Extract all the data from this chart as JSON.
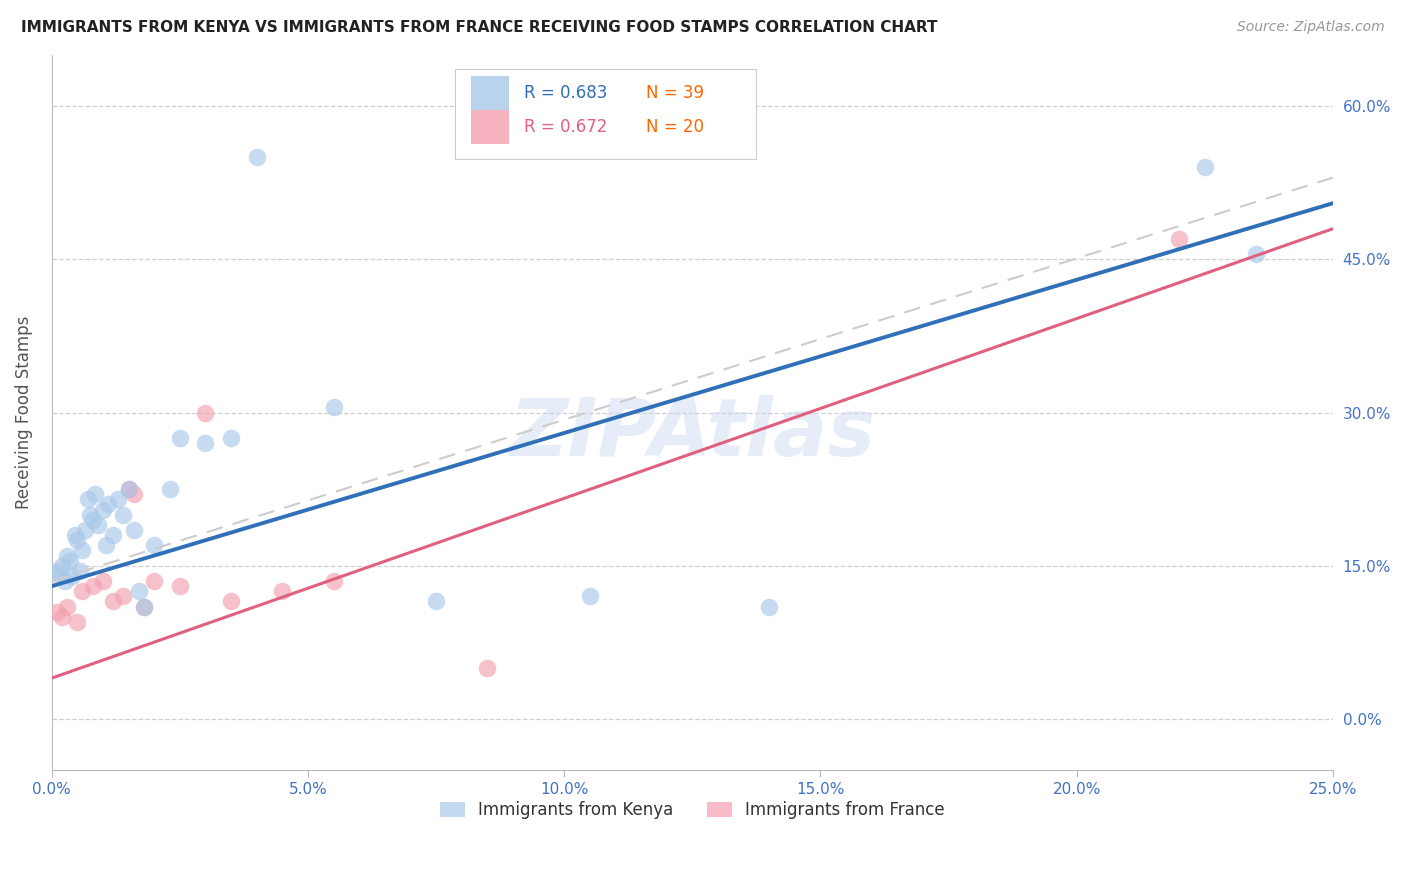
{
  "title": "IMMIGRANTS FROM KENYA VS IMMIGRANTS FROM FRANCE RECEIVING FOOD STAMPS CORRELATION CHART",
  "source": "Source: ZipAtlas.com",
  "ylabel": "Receiving Food Stamps",
  "xlim": [
    0.0,
    25.0
  ],
  "ylim": [
    -5.0,
    65.0
  ],
  "yticks": [
    0.0,
    15.0,
    30.0,
    45.0,
    60.0
  ],
  "xticks": [
    0.0,
    5.0,
    10.0,
    15.0,
    20.0,
    25.0
  ],
  "kenya_R": 0.683,
  "kenya_N": 39,
  "france_R": 0.672,
  "france_N": 20,
  "kenya_color": "#a8c8e8",
  "france_color": "#f4a0b0",
  "kenya_line_color": "#3070b8",
  "france_line_color": "#e06080",
  "dashed_line_color": "#cccccc",
  "kenya_scatter_x": [
    0.1,
    0.2,
    0.25,
    0.3,
    0.35,
    0.4,
    0.45,
    0.5,
    0.55,
    0.6,
    0.65,
    0.7,
    0.75,
    0.8,
    0.85,
    0.9,
    1.0,
    1.05,
    1.1,
    1.2,
    1.3,
    1.4,
    1.5,
    1.6,
    1.7,
    1.8,
    2.0,
    2.3,
    2.5,
    3.0,
    3.5,
    4.0,
    5.5,
    7.5,
    22.5,
    23.5,
    10.5,
    14.0,
    0.15
  ],
  "kenya_scatter_y": [
    14.5,
    15.0,
    13.5,
    16.0,
    15.5,
    14.0,
    18.0,
    17.5,
    14.5,
    16.5,
    18.5,
    21.5,
    20.0,
    19.5,
    22.0,
    19.0,
    20.5,
    17.0,
    21.0,
    18.0,
    21.5,
    20.0,
    22.5,
    18.5,
    12.5,
    11.0,
    17.0,
    22.5,
    27.5,
    27.0,
    27.5,
    55.0,
    30.5,
    11.5,
    54.0,
    45.5,
    12.0,
    11.0,
    14.0
  ],
  "france_scatter_x": [
    0.1,
    0.2,
    0.3,
    0.5,
    0.6,
    0.8,
    1.0,
    1.2,
    1.4,
    1.5,
    1.6,
    1.8,
    2.0,
    2.5,
    3.0,
    3.5,
    4.5,
    5.5,
    8.5,
    22.0
  ],
  "france_scatter_y": [
    10.5,
    10.0,
    11.0,
    9.5,
    12.5,
    13.0,
    13.5,
    11.5,
    12.0,
    22.5,
    22.0,
    11.0,
    13.5,
    13.0,
    30.0,
    11.5,
    12.5,
    13.5,
    5.0,
    47.0
  ],
  "kenya_reg_x0": 0.0,
  "kenya_reg_y0": 13.0,
  "kenya_reg_x1": 25.0,
  "kenya_reg_y1": 50.5,
  "france_reg_x0": 0.0,
  "france_reg_y0": 4.0,
  "france_reg_x1": 25.0,
  "france_reg_y1": 48.0,
  "dashed_reg_x0": 0.0,
  "dashed_reg_y0": 13.5,
  "dashed_reg_x1": 25.0,
  "dashed_reg_y1": 53.0,
  "watermark": "ZIPAtlas",
  "background_color": "#ffffff",
  "grid_color": "#d0d0d0",
  "tick_color": "#4472c4",
  "title_color": "#222222",
  "axis_color": "#bbbbbb"
}
